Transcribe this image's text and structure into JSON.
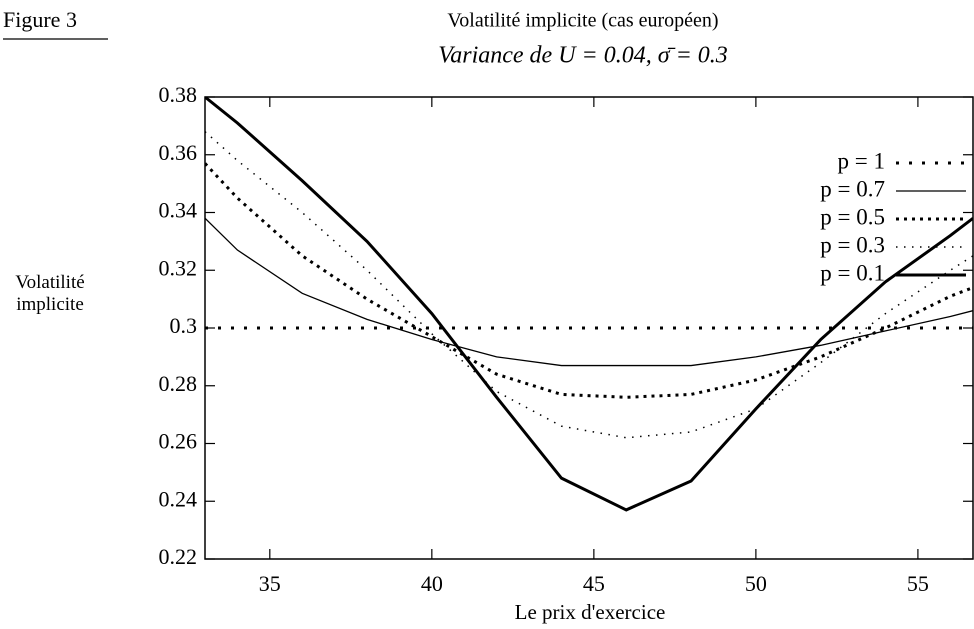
{
  "chart_data": {
    "type": "line",
    "figure_label": "Figure 3",
    "title": "Volatilité implicite (cas européen)",
    "subtitle": "Variance de U = 0.04, σ̄ = 0.3",
    "xlabel": "Le prix d'exercice",
    "ylabel": "Volatilité implicite",
    "x": [
      33,
      34,
      36,
      38,
      40,
      42,
      44,
      46,
      48,
      50,
      52,
      54,
      56,
      56.7
    ],
    "series": [
      {
        "name": "p = 1",
        "color": "#000000",
        "values": [
          0.3,
          0.3,
          0.3,
          0.3,
          0.3,
          0.3,
          0.3,
          0.3,
          0.3,
          0.3,
          0.3,
          0.3,
          0.3,
          0.3
        ]
      },
      {
        "name": "p = 0.7",
        "color": "#000000",
        "values": [
          0.338,
          0.327,
          0.312,
          0.303,
          0.296,
          0.29,
          0.287,
          0.287,
          0.287,
          0.29,
          0.294,
          0.299,
          0.304,
          0.306
        ]
      },
      {
        "name": "p = 0.5",
        "color": "#000000",
        "values": [
          0.357,
          0.345,
          0.325,
          0.31,
          0.297,
          0.284,
          0.277,
          0.276,
          0.277,
          0.282,
          0.29,
          0.3,
          0.311,
          0.314
        ]
      },
      {
        "name": "p = 0.3",
        "color": "#000000",
        "values": [
          0.368,
          0.358,
          0.34,
          0.32,
          0.298,
          0.278,
          0.266,
          0.262,
          0.264,
          0.272,
          0.288,
          0.305,
          0.32,
          0.325
        ]
      },
      {
        "name": "p = 0.1",
        "color": "#000000",
        "values": [
          0.38,
          0.371,
          0.351,
          0.33,
          0.305,
          0.276,
          0.248,
          0.237,
          0.247,
          0.272,
          0.296,
          0.316,
          0.332,
          0.338
        ]
      }
    ],
    "xlim": [
      33,
      56.7
    ],
    "xticks": [
      35,
      40,
      45,
      50,
      55
    ],
    "ylim": [
      0.22,
      0.38
    ],
    "yticks": [
      0.22,
      0.24,
      0.26,
      0.28,
      0.3,
      0.32,
      0.34,
      0.36,
      0.38
    ],
    "legend": "top-right"
  }
}
